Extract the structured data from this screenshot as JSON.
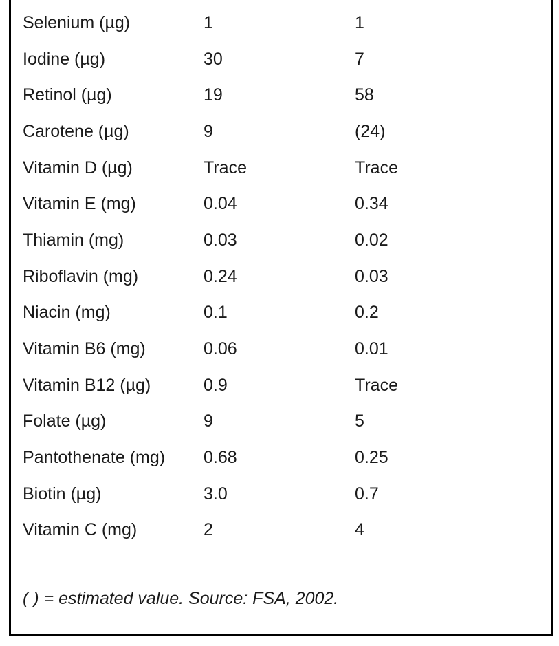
{
  "rows": [
    {
      "nutrient": "Selenium (µg)",
      "col_a": "1",
      "col_b": "1"
    },
    {
      "nutrient": "Iodine (µg)",
      "col_a": "30",
      "col_b": "7"
    },
    {
      "nutrient": "Retinol (µg)",
      "col_a": "19",
      "col_b": "58"
    },
    {
      "nutrient": "Carotene (µg)",
      "col_a": "9",
      "col_b": "(24)"
    },
    {
      "nutrient": "Vitamin D (µg)",
      "col_a": "Trace",
      "col_b": "Trace"
    },
    {
      "nutrient": "Vitamin E (mg)",
      "col_a": "0.04",
      "col_b": "0.34"
    },
    {
      "nutrient": "Thiamin (mg)",
      "col_a": "0.03",
      "col_b": "0.02"
    },
    {
      "nutrient": "Riboflavin (mg)",
      "col_a": "0.24",
      "col_b": "0.03"
    },
    {
      "nutrient": "Niacin (mg)",
      "col_a": "0.1",
      "col_b": "0.2"
    },
    {
      "nutrient": "Vitamin B6 (mg)",
      "col_a": "0.06",
      "col_b": "0.01"
    },
    {
      "nutrient": "Vitamin B12 (µg)",
      "col_a": "0.9",
      "col_b": "Trace"
    },
    {
      "nutrient": "Folate (µg)",
      "col_a": "9",
      "col_b": "5"
    },
    {
      "nutrient": "Pantothenate (mg)",
      "col_a": "0.68",
      "col_b": "0.25"
    },
    {
      "nutrient": "Biotin (µg)",
      "col_a": "3.0",
      "col_b": "0.7"
    },
    {
      "nutrient": "Vitamin C (mg)",
      "col_a": "2",
      "col_b": "4"
    }
  ],
  "footnote": "( ) = estimated value. Source: FSA, 2002."
}
